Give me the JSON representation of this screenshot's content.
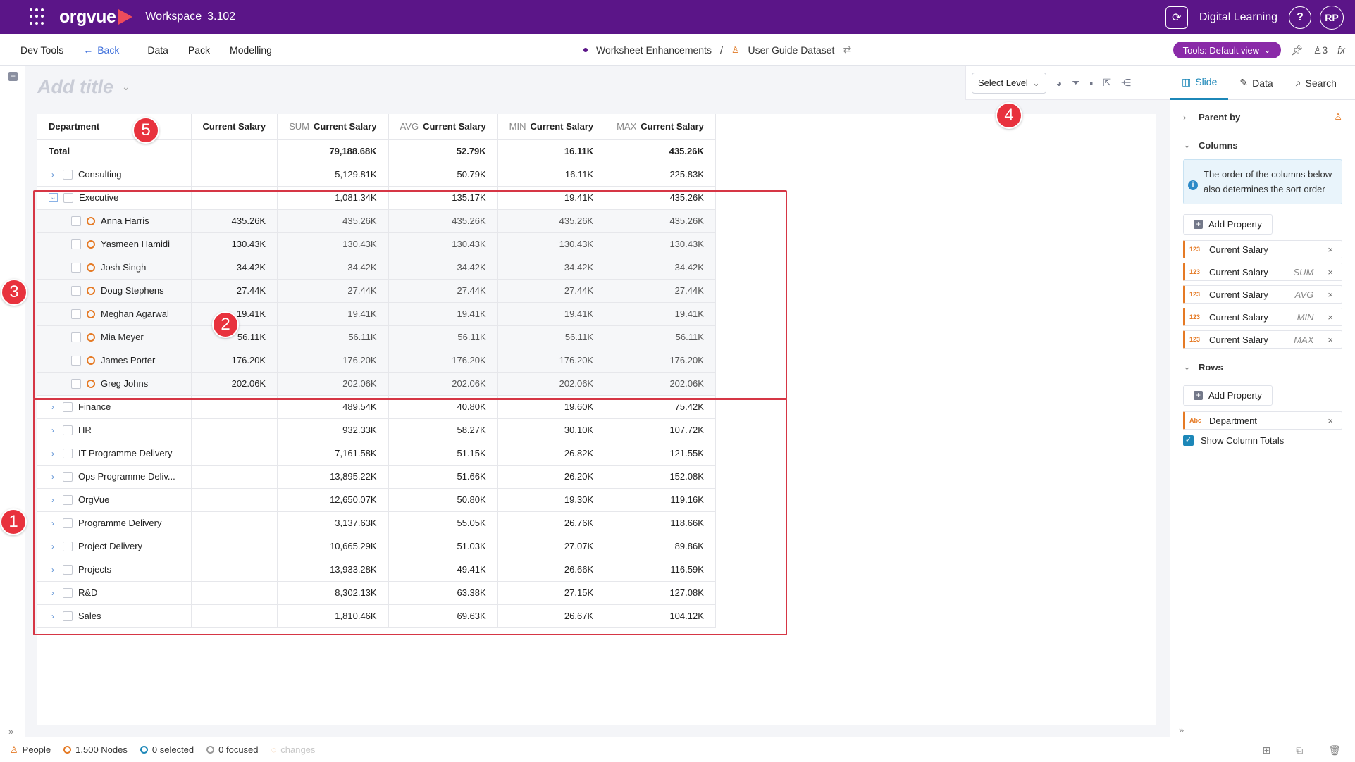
{
  "app": {
    "logo_text": "orgvue",
    "workspace_label": "Workspace",
    "workspace_version": "3.102",
    "org_name": "Digital Learning",
    "help_label": "?",
    "avatar_initials": "RP"
  },
  "nav": {
    "dev_tools": "Dev Tools",
    "back": "Back",
    "data": "Data",
    "pack": "Pack",
    "modelling": "Modelling",
    "breadcrumb_project": "Worksheet Enhancements",
    "breadcrumb_sep": "/",
    "breadcrumb_dataset": "User Guide Dataset",
    "tools_view": "Tools: Default view",
    "user_count": "3",
    "fx_label": "fx"
  },
  "canvas": {
    "title_placeholder": "Add title",
    "select_level": "Select Level"
  },
  "table": {
    "headers": [
      {
        "agg": "",
        "label": "Department"
      },
      {
        "agg": "",
        "label": "Current Salary"
      },
      {
        "agg": "SUM",
        "label": "Current Salary"
      },
      {
        "agg": "AVG",
        "label": "Current Salary"
      },
      {
        "agg": "MIN",
        "label": "Current Salary"
      },
      {
        "agg": "MAX",
        "label": "Current Salary"
      }
    ],
    "total": {
      "label": "Total",
      "value": "",
      "sum": "79,188.68K",
      "avg": "52.79K",
      "min": "16.11K",
      "max": "435.26K"
    },
    "rows": [
      {
        "label": "Consulting",
        "value": "",
        "sum": "5,129.81K",
        "avg": "50.79K",
        "min": "16.11K",
        "max": "225.83K"
      },
      {
        "label": "Executive",
        "value": "",
        "sum": "1,081.34K",
        "avg": "135.17K",
        "min": "19.41K",
        "max": "435.26K"
      },
      {
        "label": "Finance",
        "value": "",
        "sum": "489.54K",
        "avg": "40.80K",
        "min": "19.60K",
        "max": "75.42K"
      },
      {
        "label": "HR",
        "value": "",
        "sum": "932.33K",
        "avg": "58.27K",
        "min": "30.10K",
        "max": "107.72K"
      },
      {
        "label": "IT Programme Delivery",
        "value": "",
        "sum": "7,161.58K",
        "avg": "51.15K",
        "min": "26.82K",
        "max": "121.55K"
      },
      {
        "label": "Ops Programme Deliv...",
        "value": "",
        "sum": "13,895.22K",
        "avg": "51.66K",
        "min": "26.20K",
        "max": "152.08K"
      },
      {
        "label": "OrgVue",
        "value": "",
        "sum": "12,650.07K",
        "avg": "50.80K",
        "min": "19.30K",
        "max": "119.16K"
      },
      {
        "label": "Programme Delivery",
        "value": "",
        "sum": "3,137.63K",
        "avg": "55.05K",
        "min": "26.76K",
        "max": "118.66K"
      },
      {
        "label": "Project Delivery",
        "value": "",
        "sum": "10,665.29K",
        "avg": "51.03K",
        "min": "27.07K",
        "max": "89.86K"
      },
      {
        "label": "Projects",
        "value": "",
        "sum": "13,933.28K",
        "avg": "49.41K",
        "min": "26.66K",
        "max": "116.59K"
      },
      {
        "label": "R&D",
        "value": "",
        "sum": "8,302.13K",
        "avg": "63.38K",
        "min": "27.15K",
        "max": "127.08K"
      },
      {
        "label": "Sales",
        "value": "",
        "sum": "1,810.46K",
        "avg": "69.63K",
        "min": "26.67K",
        "max": "104.12K"
      }
    ],
    "executive_children": [
      {
        "label": "Anna Harris",
        "value": "435.26K",
        "sum": "435.26K",
        "avg": "435.26K",
        "min": "435.26K",
        "max": "435.26K"
      },
      {
        "label": "Yasmeen Hamidi",
        "value": "130.43K",
        "sum": "130.43K",
        "avg": "130.43K",
        "min": "130.43K",
        "max": "130.43K"
      },
      {
        "label": "Josh Singh",
        "value": "34.42K",
        "sum": "34.42K",
        "avg": "34.42K",
        "min": "34.42K",
        "max": "34.42K"
      },
      {
        "label": "Doug Stephens",
        "value": "27.44K",
        "sum": "27.44K",
        "avg": "27.44K",
        "min": "27.44K",
        "max": "27.44K"
      },
      {
        "label": "Meghan Agarwal",
        "value": "19.41K",
        "sum": "19.41K",
        "avg": "19.41K",
        "min": "19.41K",
        "max": "19.41K"
      },
      {
        "label": "Mia Meyer",
        "value": "56.11K",
        "sum": "56.11K",
        "avg": "56.11K",
        "min": "56.11K",
        "max": "56.11K"
      },
      {
        "label": "James Porter",
        "value": "176.20K",
        "sum": "176.20K",
        "avg": "176.20K",
        "min": "176.20K",
        "max": "176.20K"
      },
      {
        "label": "Greg Johns",
        "value": "202.06K",
        "sum": "202.06K",
        "avg": "202.06K",
        "min": "202.06K",
        "max": "202.06K"
      }
    ]
  },
  "markers": [
    "1",
    "2",
    "3",
    "4",
    "5"
  ],
  "panel": {
    "tabs": [
      "Slide",
      "Data",
      "Search"
    ],
    "parent_by": "Parent by",
    "columns_label": "Columns",
    "info_text": "The order of the columns below also determines the sort order",
    "add_property": "Add Property",
    "columns": [
      {
        "type": "123",
        "name": "Current Salary",
        "agg": ""
      },
      {
        "type": "123",
        "name": "Current Salary",
        "agg": "SUM"
      },
      {
        "type": "123",
        "name": "Current Salary",
        "agg": "AVG"
      },
      {
        "type": "123",
        "name": "Current Salary",
        "agg": "MIN"
      },
      {
        "type": "123",
        "name": "Current Salary",
        "agg": "MAX"
      }
    ],
    "rows_label": "Rows",
    "rows": [
      {
        "type": "Abc",
        "name": "Department",
        "agg": ""
      }
    ],
    "show_totals": "Show Column Totals"
  },
  "footer": {
    "people": "People",
    "nodes": "1,500 Nodes",
    "selected": "0 selected",
    "focused": "0 focused",
    "changes": "changes"
  },
  "colors": {
    "brand": "#5b1588",
    "accent": "#1c87b8",
    "node": "#e57a25",
    "highlight": "#d63645"
  }
}
